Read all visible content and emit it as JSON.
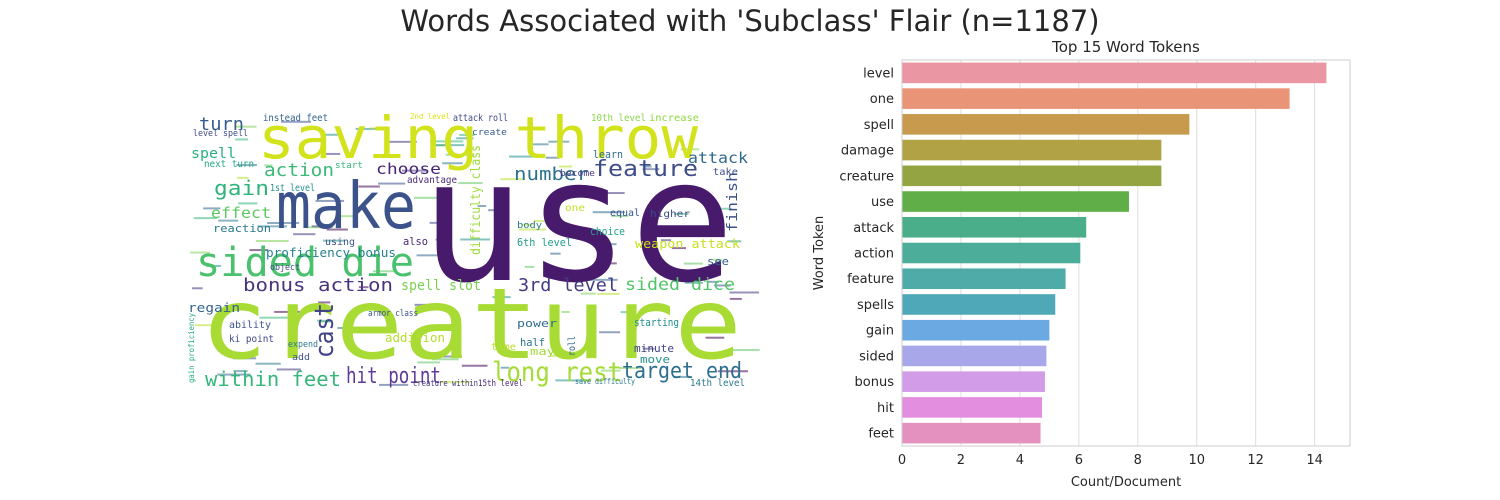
{
  "figure": {
    "title": "Words Associated with 'Subclass' Flair (n=1187)"
  },
  "wordcloud": {
    "words": [
      {
        "text": "use",
        "color": "#481a6c"
      },
      {
        "text": "creature",
        "color": "#a8db34"
      },
      {
        "text": "saving throw",
        "color": "#d2e21b"
      },
      {
        "text": "make",
        "color": "#3b528b"
      },
      {
        "text": "sided die",
        "color": "#4ac16d"
      },
      {
        "text": "long rest",
        "color": "#a5db36"
      },
      {
        "text": "hit point",
        "color": "#5e3c99"
      },
      {
        "text": "within feet",
        "color": "#35b779"
      },
      {
        "text": "bonus action",
        "color": "#46337e"
      },
      {
        "text": "3rd level",
        "color": "#443983"
      },
      {
        "text": "target end",
        "color": "#2d708e"
      },
      {
        "text": "feature",
        "color": "#3e4c8a"
      },
      {
        "text": "number",
        "color": "#2c728e"
      },
      {
        "text": "gain",
        "color": "#2fb47c"
      },
      {
        "text": "action",
        "color": "#3aba76"
      },
      {
        "text": "cast",
        "color": "#414487"
      },
      {
        "text": "sided dice",
        "color": "#52c569"
      },
      {
        "text": "turn",
        "color": "#365d8d"
      },
      {
        "text": "spell",
        "color": "#29af7f"
      },
      {
        "text": "choose",
        "color": "#482475"
      },
      {
        "text": "attack",
        "color": "#31688e"
      },
      {
        "text": "effect",
        "color": "#5ec962"
      },
      {
        "text": "spell slot",
        "color": "#7ad151"
      },
      {
        "text": "finish",
        "color": "#3b528b"
      },
      {
        "text": "difficulty class",
        "color": "#9fda3a"
      },
      {
        "text": "proficiency bonus",
        "color": "#26828e"
      },
      {
        "text": "reaction",
        "color": "#2a788e"
      },
      {
        "text": "regain",
        "color": "#33638d"
      },
      {
        "text": "ability",
        "color": "#3b528b"
      },
      {
        "text": "ki point",
        "color": "#3f4788"
      },
      {
        "text": "addition",
        "color": "#b5de2b"
      },
      {
        "text": "power",
        "color": "#2e6e8e"
      },
      {
        "text": "weapon attack",
        "color": "#c8e020"
      },
      {
        "text": "6th level",
        "color": "#1f9e89"
      },
      {
        "text": "1st level",
        "color": "#21918c"
      },
      {
        "text": "next turn",
        "color": "#22a785"
      },
      {
        "text": "level spell",
        "color": "#3f4788"
      },
      {
        "text": "instead feet",
        "color": "#32648e"
      },
      {
        "text": "attack roll",
        "color": "#3e4989"
      },
      {
        "text": "10th level",
        "color": "#8bd646"
      },
      {
        "text": "increase",
        "color": "#90d743"
      },
      {
        "text": "learn",
        "color": "#2e6f8e"
      },
      {
        "text": "take",
        "color": "#3d4e8a"
      },
      {
        "text": "advantage",
        "color": "#472c7a"
      },
      {
        "text": "equal",
        "color": "#39568c"
      },
      {
        "text": "choice",
        "color": "#1fa188"
      },
      {
        "text": "half",
        "color": "#2c738e"
      },
      {
        "text": "starting",
        "color": "#218f8d"
      },
      {
        "text": "minute",
        "color": "#414487"
      },
      {
        "text": "move",
        "color": "#21918c"
      },
      {
        "text": "14th level",
        "color": "#2a788e"
      },
      {
        "text": "using",
        "color": "#3b528b"
      },
      {
        "text": "also",
        "color": "#482878"
      },
      {
        "text": "see",
        "color": "#33638d"
      },
      {
        "text": "may",
        "color": "#a2da37"
      },
      {
        "text": "one",
        "color": "#c2df23"
      },
      {
        "text": "time",
        "color": "#b8de29"
      },
      {
        "text": "higher",
        "color": "#3d4d8a"
      },
      {
        "text": "roll",
        "color": "#31688e"
      },
      {
        "text": "start",
        "color": "#35b779"
      },
      {
        "text": "create",
        "color": "#365c8d"
      },
      {
        "text": "2nd level",
        "color": "#dae319"
      },
      {
        "text": "body",
        "color": "#2a788e"
      },
      {
        "text": "become",
        "color": "#443a83"
      },
      {
        "text": "add",
        "color": "#3b528b"
      },
      {
        "text": "expend",
        "color": "#2a788e"
      },
      {
        "text": "object",
        "color": "#3e4989"
      },
      {
        "text": "armor class",
        "color": "#3b528b"
      },
      {
        "text": "save difficulty",
        "color": "#2a788e"
      },
      {
        "text": "creature within",
        "color": "#463480"
      },
      {
        "text": "15th level",
        "color": "#482475"
      },
      {
        "text": "gain proficiency",
        "color": "#25ac82"
      }
    ]
  },
  "chart_data": {
    "type": "bar",
    "orientation": "horizontal",
    "title": "Top 15 Word Tokens",
    "xlabel": "Count/Document",
    "ylabel": "Word Token",
    "xlim": [
      0,
      15.2
    ],
    "xticks": [
      "0",
      "2",
      "4",
      "6",
      "8",
      "10",
      "12",
      "14"
    ],
    "grid": true,
    "categories": [
      "level",
      "one",
      "spell",
      "damage",
      "creature",
      "use",
      "attack",
      "action",
      "feature",
      "spells",
      "gain",
      "sided",
      "bonus",
      "hit",
      "feet"
    ],
    "values": [
      14.4,
      13.15,
      9.75,
      8.8,
      8.8,
      7.7,
      6.25,
      6.05,
      5.55,
      5.2,
      5.0,
      4.9,
      4.85,
      4.75,
      4.7
    ],
    "colors": [
      "#ea96a3",
      "#e99476",
      "#c79a4d",
      "#b0a245",
      "#95a443",
      "#5fae47",
      "#4bae8a",
      "#4cad9b",
      "#4eaba8",
      "#4fa8b7",
      "#6aa9e1",
      "#a8a7ea",
      "#d29ce9",
      "#e48ee0",
      "#e591c0"
    ]
  }
}
